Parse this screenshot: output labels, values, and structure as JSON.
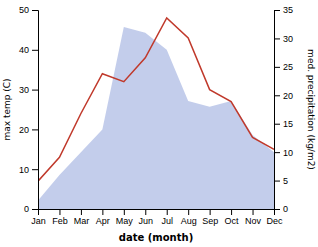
{
  "chart_data": {
    "type": "line",
    "xlabel": "date (month)",
    "ylabel": "max temp (C)",
    "y2label": "med. precipitation (kg/m2)",
    "categories": [
      "Jan",
      "Feb",
      "Mar",
      "Apr",
      "May",
      "Jun",
      "Jul",
      "Aug",
      "Sep",
      "Oct",
      "Nov",
      "Dec"
    ],
    "series": [
      {
        "type": "area",
        "color": "#b8c4e8",
        "axis": "y2",
        "values": [
          1.5,
          6,
          10,
          14,
          32,
          31,
          28,
          19,
          18,
          19,
          13,
          10
        ]
      },
      {
        "type": "line",
        "color": "#c0392b",
        "values": [
          7,
          13,
          24,
          34,
          32,
          38,
          48,
          43,
          30,
          27,
          18,
          15
        ]
      }
    ],
    "ylim": [
      0,
      50
    ],
    "yticks": [
      0,
      10,
      20,
      30,
      40,
      50
    ],
    "y2lim": [
      0,
      35
    ],
    "y2ticks": [
      0,
      5,
      10,
      15,
      20,
      25,
      30,
      35
    ],
    "grid": false
  }
}
